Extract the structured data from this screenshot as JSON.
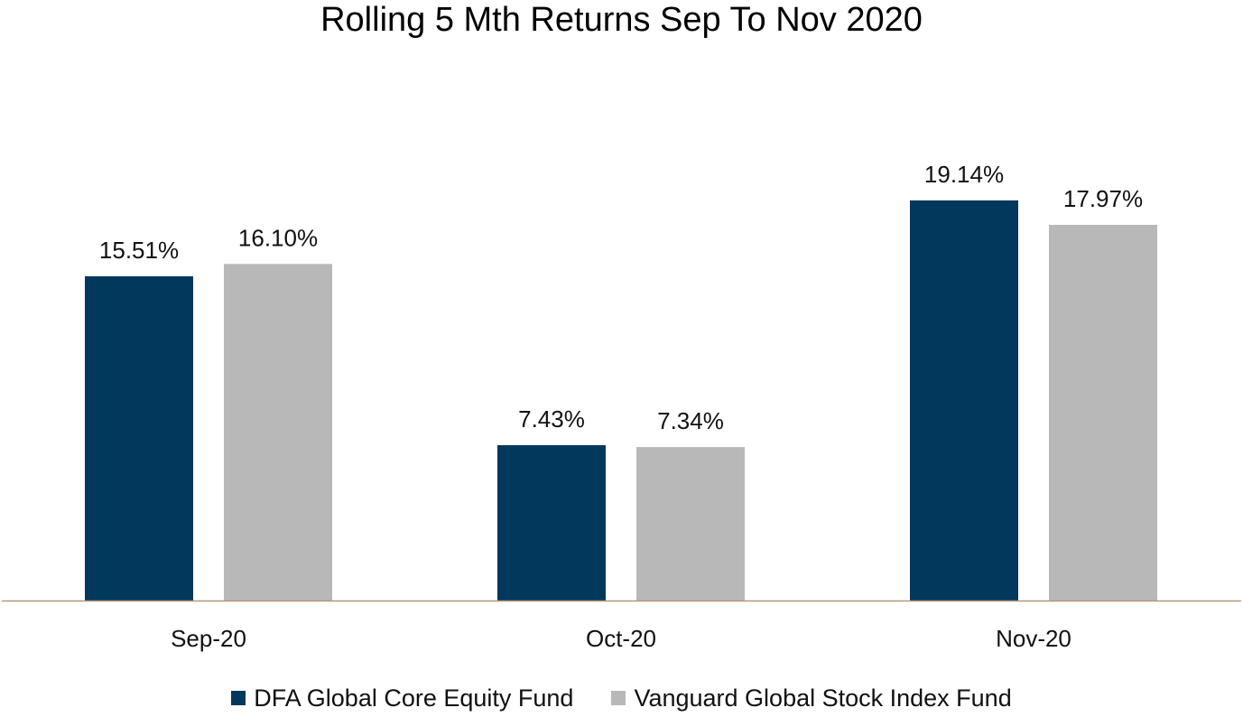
{
  "chart_data": {
    "type": "bar",
    "title": "Rolling 5 Mth Returns Sep To Nov 2020",
    "categories": [
      "Sep-20",
      "Oct-20",
      "Nov-20"
    ],
    "series": [
      {
        "name": "DFA Global Core Equity Fund",
        "color": "#02385c",
        "values": [
          15.51,
          7.43,
          19.14
        ],
        "labels": [
          "15.51%",
          "7.43%",
          "19.14%"
        ]
      },
      {
        "name": "Vanguard Global Stock Index Fund",
        "color": "#b8b8b8",
        "values": [
          16.1,
          7.34,
          17.97
        ],
        "labels": [
          "16.10%",
          "7.34%",
          "17.97%"
        ]
      }
    ],
    "xlabel": "",
    "ylabel": "",
    "ylim": [
      0,
      25
    ],
    "grid": false,
    "legend": "bottom",
    "axis_color": "#b8977a"
  }
}
